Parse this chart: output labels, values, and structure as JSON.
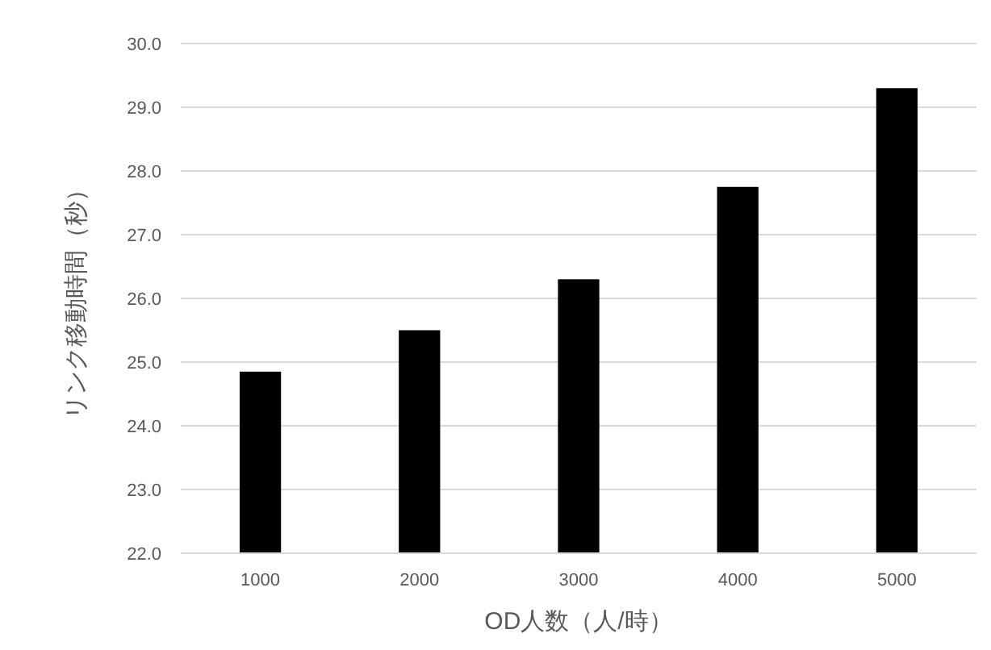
{
  "chart_data": {
    "type": "bar",
    "xlabel": "OD人数（人/時）",
    "ylabel": "リンク移動時間（秒）",
    "categories": [
      "1000",
      "2000",
      "3000",
      "4000",
      "5000"
    ],
    "values": [
      24.85,
      25.5,
      26.3,
      27.75,
      29.3
    ],
    "color": "#000000",
    "ylim": [
      22,
      30
    ],
    "yticks": [
      {
        "value": 22,
        "label": "22.0"
      },
      {
        "value": 23,
        "label": "23.0"
      },
      {
        "value": 24,
        "label": "24.0"
      },
      {
        "value": 25,
        "label": "25.0"
      },
      {
        "value": 26,
        "label": "26.0"
      },
      {
        "value": 27,
        "label": "27.0"
      },
      {
        "value": 28,
        "label": "28.0"
      },
      {
        "value": 29,
        "label": "29.0"
      },
      {
        "value": 30,
        "label": "30.0"
      }
    ],
    "grid": "y"
  }
}
